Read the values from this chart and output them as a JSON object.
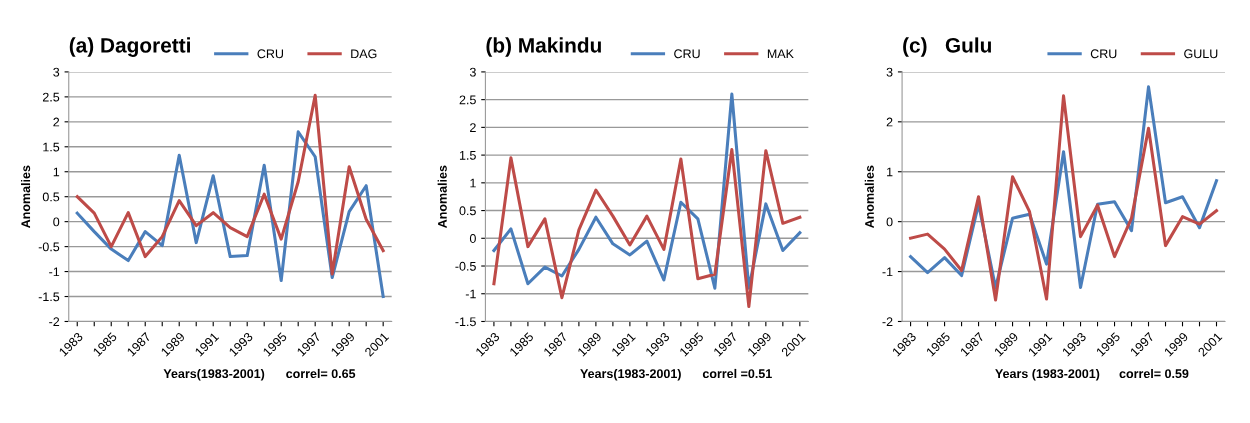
{
  "chart_data": [
    {
      "type": "line",
      "title": "(a) Dagoretti",
      "xlabel": "Years(1983-2001)",
      "ylabel": "Anomalies",
      "annotations": [
        "correl= 0.65"
      ],
      "categories": [
        "1983",
        null,
        "1985",
        null,
        "1987",
        null,
        "1989",
        null,
        "1991",
        null,
        "1993",
        null,
        "1995",
        null,
        "1997",
        null,
        "1999",
        null,
        "2001"
      ],
      "series": [
        {
          "name": "CRU",
          "color": "#4a7ebb",
          "values": [
            0.17,
            -0.2,
            -0.55,
            -0.78,
            -0.2,
            -0.48,
            1.33,
            -0.42,
            0.92,
            -0.7,
            -0.68,
            1.13,
            -1.18,
            1.8,
            1.3,
            -1.12,
            0.2,
            0.72,
            -1.5
          ]
        },
        {
          "name": "DAG",
          "color": "#be4b48",
          "values": [
            0.5,
            0.17,
            -0.5,
            0.18,
            -0.7,
            -0.3,
            0.42,
            -0.08,
            0.18,
            -0.12,
            -0.3,
            0.55,
            -0.35,
            0.8,
            2.53,
            -1.05,
            1.1,
            0.05,
            -0.58
          ]
        }
      ],
      "ylim": [
        -2,
        3
      ],
      "yticks": [
        -2,
        -1.5,
        -1,
        -0.5,
        0,
        0.5,
        1,
        1.5,
        2,
        2.5,
        3
      ],
      "grid": "y",
      "legend": "top",
      "marker": "none",
      "line_style": "solid"
    },
    {
      "type": "line",
      "title": "(b) Makindu",
      "xlabel": "Years(1983-2001)",
      "ylabel": "Anomalies",
      "annotations": [
        "correl =0.51"
      ],
      "categories": [
        "1983",
        null,
        "1985",
        null,
        "1987",
        null,
        "1989",
        null,
        "1991",
        null,
        "1993",
        null,
        "1995",
        null,
        "1997",
        null,
        "1999",
        null,
        "2001"
      ],
      "series": [
        {
          "name": "CRU",
          "color": "#4a7ebb",
          "values": [
            -0.22,
            0.17,
            -0.82,
            -0.52,
            -0.68,
            -0.2,
            0.38,
            -0.1,
            -0.3,
            -0.05,
            -0.75,
            0.65,
            0.35,
            -0.9,
            2.6,
            -0.9,
            0.62,
            -0.22,
            0.1
          ]
        },
        {
          "name": "MAK",
          "color": "#be4b48",
          "values": [
            -0.82,
            1.45,
            -0.15,
            0.35,
            -1.07,
            0.15,
            0.87,
            0.4,
            -0.12,
            0.4,
            -0.2,
            1.43,
            -0.73,
            -0.65,
            1.6,
            -1.23,
            1.58,
            0.27,
            0.38
          ]
        }
      ],
      "ylim": [
        -1.5,
        3
      ],
      "yticks": [
        -1.5,
        -1,
        -0.5,
        0,
        0.5,
        1,
        1.5,
        2,
        2.5,
        3
      ],
      "grid": "y",
      "legend": "top",
      "marker": "none",
      "line_style": "solid"
    },
    {
      "type": "line",
      "title": "(c)   Gulu",
      "xlabel": "Years (1983-2001)",
      "ylabel": "Anomalies",
      "annotations": [
        "correl= 0.59"
      ],
      "categories": [
        "1983",
        null,
        "1985",
        null,
        "1987",
        null,
        "1989",
        null,
        "1991",
        null,
        "1993",
        null,
        "1995",
        null,
        "1997",
        null,
        "1999",
        null,
        "2001"
      ],
      "series": [
        {
          "name": "CRU",
          "color": "#4a7ebb",
          "values": [
            -0.7,
            -1.02,
            -0.72,
            -1.08,
            0.35,
            -1.32,
            0.07,
            0.15,
            -0.85,
            1.4,
            -1.32,
            0.35,
            0.4,
            -0.18,
            2.7,
            0.38,
            0.5,
            -0.12,
            0.82
          ]
        },
        {
          "name": "GULU",
          "color": "#be4b48",
          "values": [
            -0.33,
            -0.25,
            -0.55,
            -0.98,
            0.5,
            -1.57,
            0.9,
            0.2,
            -1.55,
            2.52,
            -0.3,
            0.33,
            -0.7,
            0.07,
            1.87,
            -0.48,
            0.1,
            -0.05,
            0.22
          ]
        }
      ],
      "ylim": [
        -2,
        3
      ],
      "yticks": [
        -2,
        -1,
        0,
        1,
        2,
        3
      ],
      "grid": "y",
      "legend": "top",
      "marker": "none",
      "line_style": "solid"
    }
  ]
}
